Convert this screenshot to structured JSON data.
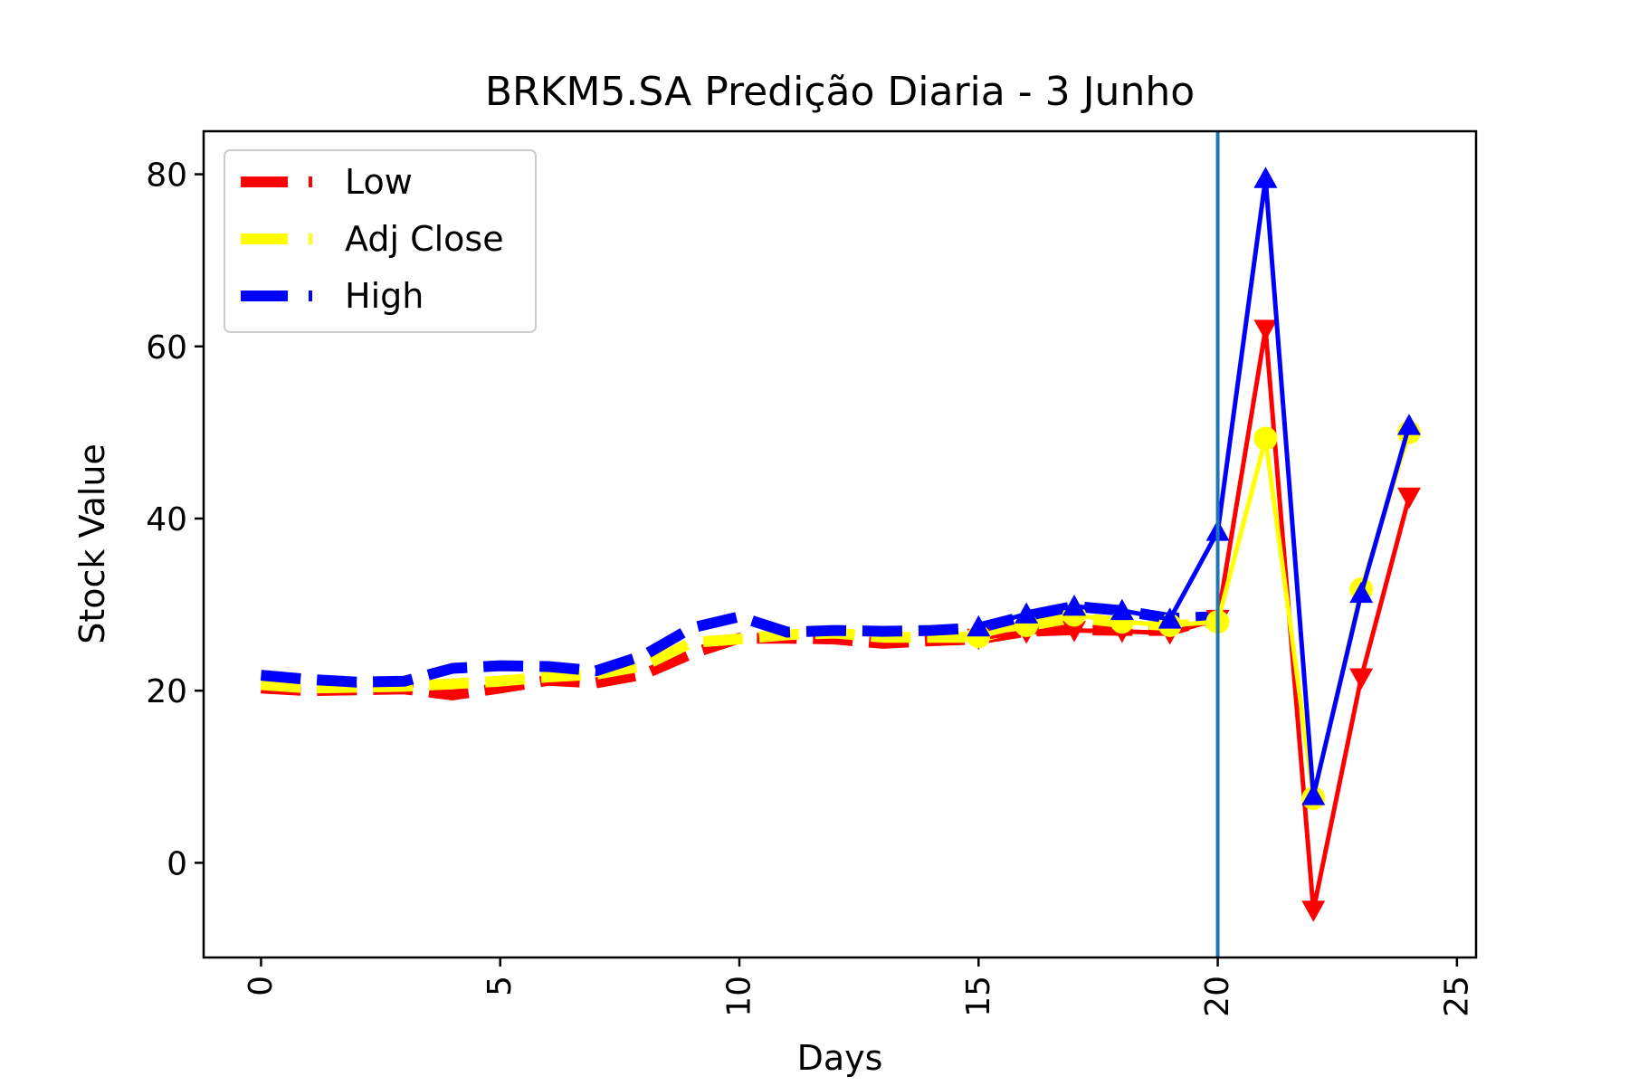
{
  "chart_data": {
    "type": "line",
    "title": "BRKM5.SA Predição Diaria - 3 Junho",
    "xlabel": "Days",
    "ylabel": "Stock Value",
    "xlim": [
      -1.2,
      25.4
    ],
    "ylim": [
      -11,
      85
    ],
    "xticks": [
      0,
      5,
      10,
      15,
      20,
      25
    ],
    "yticks": [
      0,
      20,
      40,
      60,
      80
    ],
    "xtick_rotation": 90,
    "vline": {
      "x": 20,
      "color": "#1f77b4"
    },
    "legend": {
      "position": "top-left"
    },
    "grid": false,
    "series": [
      {
        "name": "Low",
        "color": "#ff0000",
        "historical": {
          "x": [
            0,
            1,
            2,
            3,
            4,
            5,
            6,
            7,
            8,
            9,
            10,
            11,
            12,
            13,
            14,
            15,
            16,
            17,
            18,
            19,
            20
          ],
          "y": [
            20.3,
            20.0,
            20.1,
            20.2,
            19.5,
            20.3,
            21.2,
            20.9,
            21.9,
            24.3,
            26.1,
            26.1,
            26.0,
            25.5,
            25.8,
            26.0,
            26.9,
            27.1,
            27.0,
            27.0,
            28.5
          ]
        },
        "predicted": {
          "x": [
            15,
            16,
            17,
            18,
            19,
            20,
            21,
            22,
            23,
            24
          ],
          "y": [
            26.1,
            26.8,
            27.0,
            26.9,
            26.7,
            28.3,
            62.0,
            -5.5,
            21.5,
            42.5
          ]
        },
        "marker": "triangle-down"
      },
      {
        "name": "Adj Close",
        "color": "#ffff00",
        "historical": {
          "x": [
            0,
            1,
            2,
            3,
            4,
            5,
            6,
            7,
            8,
            9,
            10,
            11,
            12,
            13,
            14,
            15,
            16,
            17,
            18,
            19,
            20
          ],
          "y": [
            20.7,
            20.3,
            20.4,
            20.5,
            20.8,
            21.1,
            21.6,
            21.9,
            22.9,
            25.6,
            26.0,
            26.5,
            26.7,
            26.2,
            26.2,
            26.2,
            27.5,
            28.5,
            27.9,
            27.5,
            28.0
          ]
        },
        "predicted": {
          "x": [
            15,
            16,
            17,
            18,
            19,
            20,
            21,
            22,
            23,
            24
          ],
          "y": [
            26.3,
            27.6,
            28.8,
            28.0,
            27.6,
            28.0,
            49.3,
            7.5,
            31.8,
            50.0
          ]
        },
        "marker": "circle"
      },
      {
        "name": "High",
        "color": "#0000ff",
        "historical": {
          "x": [
            0,
            1,
            2,
            3,
            4,
            5,
            6,
            7,
            8,
            9,
            10,
            11,
            12,
            13,
            14,
            15,
            16,
            17,
            18,
            19,
            20
          ],
          "y": [
            21.8,
            21.3,
            21.0,
            21.1,
            22.6,
            22.9,
            22.8,
            22.3,
            24.1,
            27.3,
            28.6,
            26.8,
            27.0,
            26.9,
            27.0,
            27.3,
            28.7,
            29.8,
            29.3,
            28.4,
            28.6
          ]
        },
        "predicted": {
          "x": [
            15,
            16,
            17,
            18,
            19,
            20,
            21,
            22,
            23,
            24
          ],
          "y": [
            27.4,
            28.9,
            29.8,
            29.3,
            28.3,
            38.5,
            79.5,
            7.8,
            31.3,
            50.8
          ]
        },
        "marker": "triangle-up"
      }
    ]
  }
}
